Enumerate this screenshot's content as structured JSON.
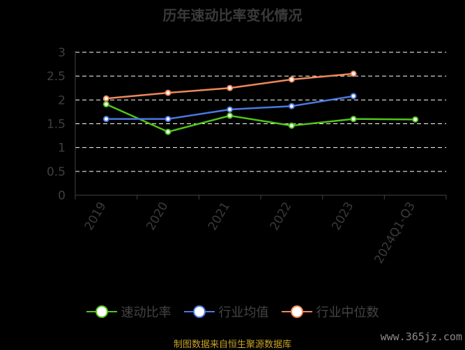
{
  "title": "历年速动比率变化情况",
  "source": "制图数据来自恒生聚源数据库",
  "watermark": "www.365jz.com",
  "chart_data": {
    "type": "line",
    "title": "历年速动比率变化情况",
    "categories": [
      "2019",
      "2020",
      "2021",
      "2022",
      "2023",
      "2024Q1-Q3"
    ],
    "ylim": [
      0,
      3
    ],
    "yticks": [
      "0",
      "0.5",
      "1",
      "1.5",
      "2",
      "2.5",
      "3"
    ],
    "grid": true,
    "legend_position": "bottom",
    "series": [
      {
        "name": "速动比率",
        "color": "#52c41a",
        "values": [
          1.91,
          1.33,
          1.67,
          1.46,
          1.6,
          1.59
        ]
      },
      {
        "name": "行业均值",
        "color": "#4a78e0",
        "values": [
          1.6,
          1.6,
          1.8,
          1.87,
          2.08,
          null
        ]
      },
      {
        "name": "行业中位数",
        "color": "#f0875a",
        "values": [
          2.03,
          2.15,
          2.25,
          2.43,
          2.55,
          null
        ]
      }
    ]
  }
}
